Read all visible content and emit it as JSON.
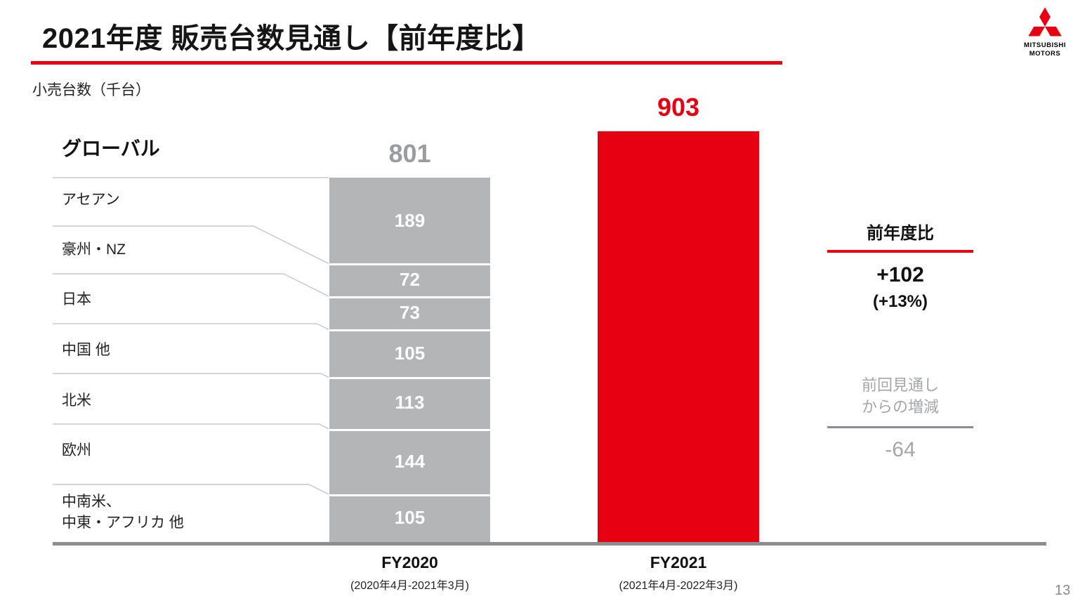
{
  "slide": {
    "title": "2021年度 販売台数見通し【前年度比】",
    "unit_label": "小売台数（千台）",
    "page_number": "13",
    "brand": {
      "name_line1": "MITSUBISHI",
      "name_line2": "MOTORS"
    }
  },
  "chart_data": {
    "type": "bar",
    "subtype": "stacked_bar_vs_total_comparison",
    "title": "2021年度 販売台数見通し【前年度比】",
    "unit": "thousand units (千台)",
    "categories": [
      "FY2020",
      "FY2021"
    ],
    "category_sublabels": [
      "(2020年4月-2021年3月)",
      "(2021年4月-2022年3月)"
    ],
    "totals": [
      801,
      903
    ],
    "global_label": "グローバル",
    "fy2020_segments": [
      {
        "label": "アセアン",
        "value": 189
      },
      {
        "label": "豪州・NZ",
        "value": 72
      },
      {
        "label": "日本",
        "value": 73
      },
      {
        "label": "中国 他",
        "value": 105
      },
      {
        "label": "北米",
        "value": 113
      },
      {
        "label": "欧州",
        "value": 144
      },
      {
        "label": "中南米、中東・アフリカ 他",
        "value": 105
      }
    ],
    "row_labels": [
      "アセアン",
      "豪州・NZ",
      "日本",
      "中国 他",
      "北米",
      "欧州",
      "中南米、\n中東・アフリカ 他"
    ],
    "ylim": [
      0,
      950
    ],
    "legend": "none",
    "grid": false,
    "colors": {
      "fy2020_bar": "#b3b5b7",
      "fy2021_bar": "#e60012",
      "accent_red": "#e60012",
      "muted_gray_text": "#a4a6a9"
    }
  },
  "right_panel": {
    "yoy_title": "前年度比",
    "yoy_value": "+102",
    "yoy_percent": "(+13%)",
    "forecast_title": "前回見通し\nからの増減",
    "forecast_value": "-64"
  }
}
